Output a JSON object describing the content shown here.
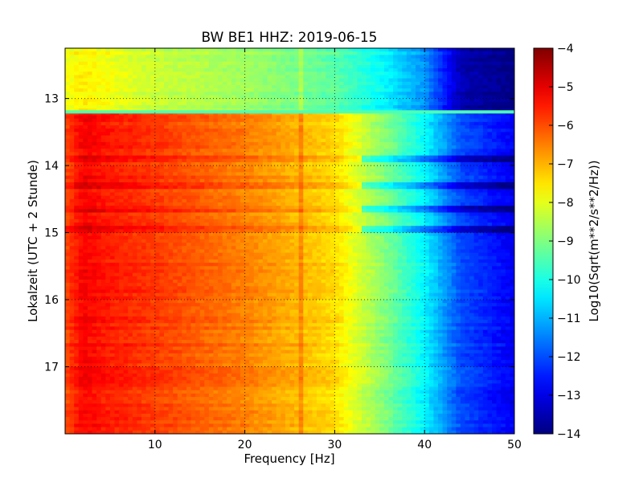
{
  "chart_data": {
    "type": "heatmap",
    "title": "BW BE1 HHZ: 2019-06-15",
    "xlabel": "Frequency [Hz]",
    "ylabel": "Lokalzeit (UTC + 2 Stunde)",
    "colorbar_label": "Log10(Sqrt(m**2/s**2/Hz))",
    "xlim": [
      0,
      50
    ],
    "ylim": [
      12.25,
      18.0
    ],
    "y_inverted": true,
    "clim": [
      -14,
      -4
    ],
    "colormap": "jet",
    "grid": true,
    "x_ticks": [
      10,
      20,
      30,
      40,
      50
    ],
    "x_tick_labels": [
      "10",
      "20",
      "30",
      "40",
      "50"
    ],
    "y_ticks": [
      13,
      14,
      15,
      16,
      17
    ],
    "y_tick_labels": [
      "13",
      "14",
      "15",
      "16",
      "17"
    ],
    "colorbar_ticks": [
      -4,
      -5,
      -6,
      -7,
      -8,
      -9,
      -10,
      -11,
      -12,
      -13,
      -14
    ],
    "colorbar_tick_labels": [
      "−4",
      "−5",
      "−6",
      "−7",
      "−8",
      "−9",
      "−10",
      "−11",
      "−12",
      "−13",
      "−14"
    ],
    "segments": [
      {
        "time_range": [
          12.25,
          13.2
        ],
        "frequency_hz": [
          0,
          2,
          5,
          10,
          20,
          30,
          35,
          40,
          44,
          50
        ],
        "log10_amplitude": [
          -7.9,
          -7.6,
          -7.9,
          -8.3,
          -8.7,
          -9.4,
          -10.2,
          -11.3,
          -13.5,
          -14.0
        ]
      },
      {
        "time_range": [
          13.2,
          18.0
        ],
        "frequency_hz": [
          0,
          2,
          5,
          10,
          20,
          30,
          35,
          40,
          44,
          50
        ],
        "log10_amplitude": [
          -6.0,
          -5.2,
          -5.5,
          -5.8,
          -6.5,
          -7.4,
          -8.8,
          -10.3,
          -12.0,
          -12.9
        ]
      }
    ],
    "gap_marker_time": 13.2,
    "low_noise_bands_hours": [
      13.9,
      14.3,
      14.65,
      14.95
    ],
    "spectral_lines_hz": [
      26.1
    ]
  }
}
